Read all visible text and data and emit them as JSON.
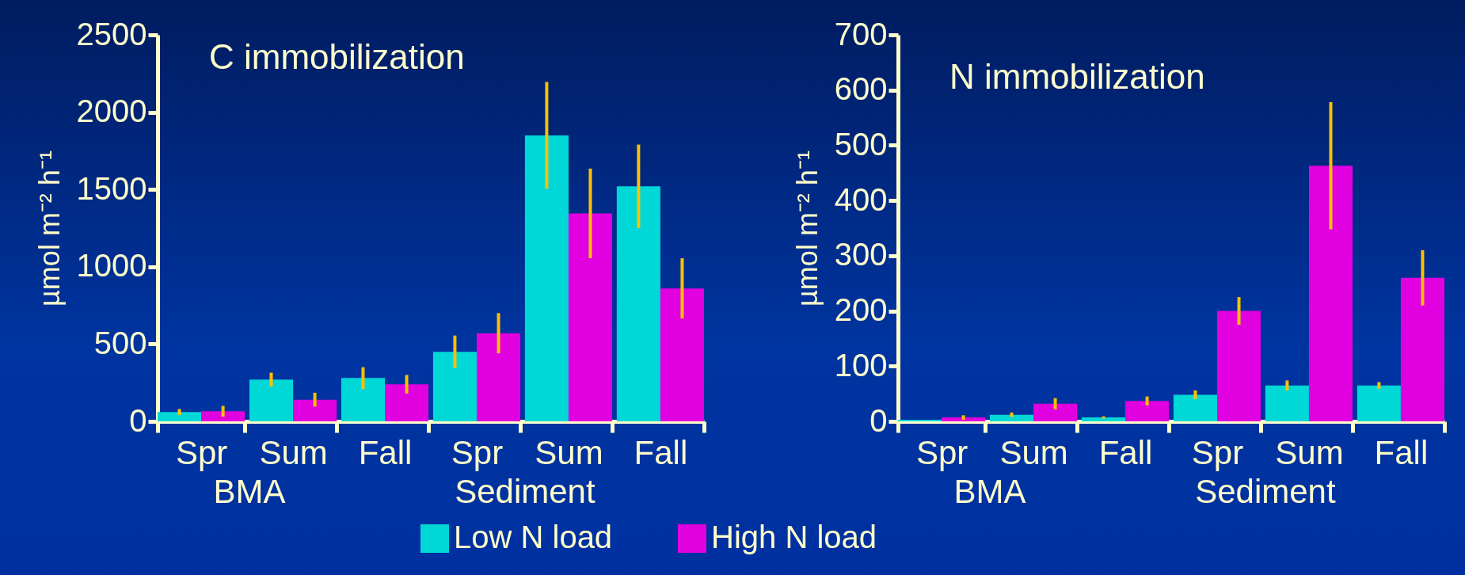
{
  "chart_data": [
    {
      "type": "bar",
      "title": "C immobilization",
      "ylabel": "µmol m⁻² h⁻¹",
      "categories": [
        "Spr",
        "Sum",
        "Fall",
        "Spr",
        "Sum",
        "Fall"
      ],
      "annotations": [
        "BMA",
        "Sediment"
      ],
      "ylim": [
        0,
        2500
      ],
      "yticks": [
        0,
        500,
        1000,
        1500,
        2000,
        2500
      ],
      "legend": "bottom",
      "series": [
        {
          "name": "Low N load",
          "color": "#00d8d8",
          "values": [
            60,
            270,
            280,
            450,
            1850,
            1520
          ],
          "errors": [
            20,
            45,
            70,
            105,
            345,
            270
          ]
        },
        {
          "name": "High N load",
          "color": "#e000e0",
          "values": [
            65,
            140,
            240,
            570,
            1345,
            860
          ],
          "errors": [
            35,
            45,
            60,
            130,
            290,
            195
          ]
        }
      ]
    },
    {
      "type": "bar",
      "title": "N immobilization",
      "ylabel": "µmol m⁻² h⁻¹",
      "categories": [
        "Spr",
        "Sum",
        "Fall",
        "Spr",
        "Sum",
        "Fall"
      ],
      "annotations": [
        "BMA",
        "Sediment"
      ],
      "ylim": [
        0,
        700
      ],
      "yticks": [
        0,
        100,
        200,
        300,
        400,
        500,
        600,
        700
      ],
      "legend": "bottom",
      "series": [
        {
          "name": "Low N load",
          "color": "#00d8d8",
          "values": [
            3,
            12,
            7,
            48,
            65,
            65
          ],
          "errors": [
            null,
            4,
            2,
            8,
            9,
            6
          ]
        },
        {
          "name": "High N load",
          "color": "#e000e0",
          "values": [
            7,
            32,
            37,
            200,
            463,
            260
          ],
          "errors": [
            4,
            10,
            8,
            25,
            115,
            50
          ]
        }
      ]
    }
  ]
}
